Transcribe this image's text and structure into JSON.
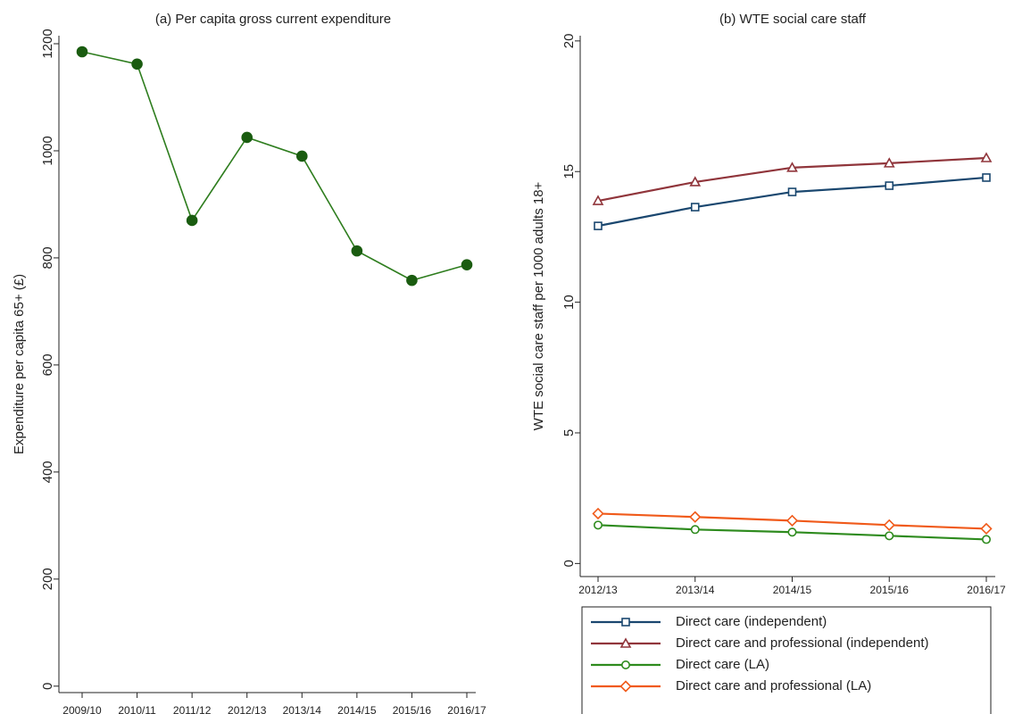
{
  "chart_data": [
    {
      "type": "line",
      "title": "(a) Per capita gross current expenditure",
      "y_label": "Expenditure per capita 65+ (£)",
      "categories": [
        "2009/10",
        "2010/11",
        "2011/12",
        "2012/13",
        "2013/14",
        "2014/15",
        "2015/16",
        "2016/17"
      ],
      "series": [
        {
          "color": "#2e7d1e",
          "marker": "dot",
          "values": [
            1185,
            1162,
            870,
            1025,
            990,
            813,
            758,
            787
          ]
        }
      ],
      "ylim": [
        -12,
        1215
      ],
      "yticks": [
        0,
        200,
        400,
        600,
        800,
        1000,
        1200
      ]
    },
    {
      "type": "line",
      "title": "(b) WTE social care staff",
      "y_label": "WTE social care staff per 1000 adults 18+",
      "categories": [
        "2012/13",
        "2013/14",
        "2014/15",
        "2015/16",
        "2016/17"
      ],
      "series": [
        {
          "name": "Direct care (independent)",
          "color": "#1a476f",
          "marker": "square",
          "values": [
            12.92,
            13.64,
            14.22,
            14.46,
            14.77
          ]
        },
        {
          "name": "Direct care and professional (independent)",
          "color": "#90353b",
          "marker": "triangle",
          "values": [
            13.88,
            14.6,
            15.15,
            15.32,
            15.52
          ]
        },
        {
          "name": "Direct care (LA)",
          "color": "#2e8b1e",
          "marker": "circle",
          "values": [
            1.47,
            1.3,
            1.2,
            1.06,
            0.92
          ]
        },
        {
          "name": "Direct care and professional (LA)",
          "color": "#f05a1a",
          "marker": "diamond",
          "values": [
            1.91,
            1.78,
            1.64,
            1.47,
            1.33
          ]
        }
      ],
      "ylim": [
        -0.5,
        20.2
      ],
      "yticks": [
        0,
        5,
        10,
        15,
        20
      ],
      "legend": "bottom"
    }
  ]
}
